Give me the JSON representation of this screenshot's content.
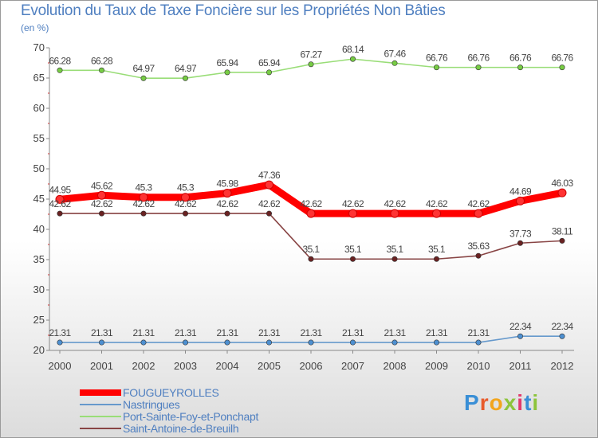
{
  "chart_data": {
    "type": "line",
    "title": "Evolution du Taux de Taxe Foncière sur les Propriétés Non Bâties",
    "ylabel": "(en %)",
    "ylim": [
      20,
      70
    ],
    "yticks": [
      "20",
      "25",
      "30",
      "35",
      "40",
      "45",
      "50",
      "55",
      "60",
      "65",
      "70"
    ],
    "categories": [
      "2000",
      "2001",
      "2002",
      "2003",
      "2004",
      "2005",
      "2006",
      "2007",
      "2008",
      "2009",
      "2010",
      "2011",
      "2012"
    ],
    "series": [
      {
        "name": "FOUGUEYROLLES",
        "color": "#ff0000",
        "values": [
          44.95,
          45.62,
          45.3,
          45.3,
          45.98,
          47.36,
          42.62,
          42.62,
          42.62,
          42.62,
          42.62,
          44.69,
          46.03
        ],
        "labels": [
          "44.95",
          "45.62",
          "45.3",
          "45.3",
          "45.98",
          "47.36",
          "42.62",
          "42.62",
          "42.62",
          "42.62",
          "42.62",
          "44.69",
          "46.03"
        ]
      },
      {
        "name": "Nastringues",
        "color": "#6699cc",
        "values": [
          21.31,
          21.31,
          21.31,
          21.31,
          21.31,
          21.31,
          21.31,
          21.31,
          21.31,
          21.31,
          21.31,
          22.34,
          22.34
        ],
        "labels": [
          "21.31",
          "21.31",
          "21.31",
          "21.31",
          "21.31",
          "21.31",
          "21.31",
          "21.31",
          "21.31",
          "21.31",
          "21.31",
          "22.34",
          "22.34"
        ]
      },
      {
        "name": "Port-Sainte-Foy-et-Ponchapt",
        "color": "#99dd77",
        "values": [
          66.28,
          66.28,
          64.97,
          64.97,
          65.94,
          65.94,
          67.27,
          68.14,
          67.46,
          66.76,
          66.76,
          66.76,
          66.76
        ],
        "labels": [
          "66.28",
          "66.28",
          "64.97",
          "64.97",
          "65.94",
          "65.94",
          "67.27",
          "68.14",
          "67.46",
          "66.76",
          "66.76",
          "66.76",
          "66.76"
        ]
      },
      {
        "name": "Saint-Antoine-de-Breuilh",
        "color": "#884444",
        "values": [
          42.62,
          42.62,
          42.62,
          42.62,
          42.62,
          42.62,
          35.1,
          35.1,
          35.1,
          35.1,
          35.63,
          37.73,
          38.11
        ],
        "labels": [
          "42.62",
          "42.62",
          "42.62",
          "42.62",
          "42.62",
          "42.62",
          "35.1",
          "35.1",
          "35.1",
          "35.1",
          "35.63",
          "37.73",
          "38.11"
        ]
      }
    ],
    "legend_position": "bottom-left",
    "grid": false
  },
  "logo": {
    "letters": [
      "P",
      "r",
      "o",
      "x",
      "i",
      "t",
      "i"
    ],
    "colors": [
      "#3a8fd6",
      "#e85a2a",
      "#f2a51d",
      "#8cc43c",
      "#e23a6d",
      "#3a8fd6",
      "#8cc43c"
    ]
  }
}
